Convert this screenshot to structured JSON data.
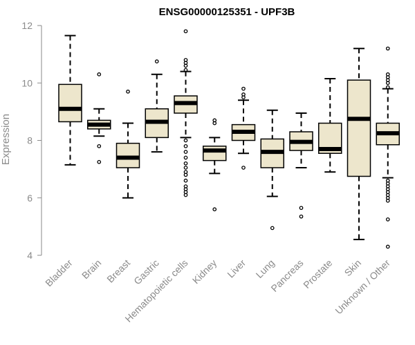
{
  "chart_data": {
    "type": "boxplot",
    "title": "ENSG00000125351 - UPF3B",
    "xlabel": "",
    "ylabel": "Expression",
    "ylim": [
      4,
      12
    ],
    "yticks": [
      "4",
      "6",
      "8",
      "10",
      "12"
    ],
    "grid": false,
    "box_color": "#ede6cc",
    "categories": [
      "Bladder",
      "Brain",
      "Breast",
      "Gastric",
      "Hematopoietic cells",
      "Kidney",
      "Liver",
      "Lung",
      "Pancreas",
      "Prostate",
      "Skin",
      "Unknown / Other"
    ],
    "boxes": [
      {
        "name": "Bladder",
        "whisker_low": 7.15,
        "q1": 8.65,
        "median": 9.1,
        "q3": 9.95,
        "whisker_high": 11.65,
        "outliers": []
      },
      {
        "name": "Brain",
        "whisker_low": 8.15,
        "q1": 8.4,
        "median": 8.55,
        "q3": 8.7,
        "whisker_high": 9.1,
        "outliers": [
          7.8,
          7.25,
          10.3
        ]
      },
      {
        "name": "Breast",
        "whisker_low": 6.0,
        "q1": 7.05,
        "median": 7.4,
        "q3": 7.9,
        "whisker_high": 8.6,
        "outliers": [
          9.7
        ]
      },
      {
        "name": "Gastric",
        "whisker_low": 7.6,
        "q1": 8.1,
        "median": 8.65,
        "q3": 9.1,
        "whisker_high": 10.3,
        "outliers": [
          10.75
        ]
      },
      {
        "name": "Hematopoietic cells",
        "whisker_low": 8.1,
        "q1": 8.95,
        "median": 9.3,
        "q3": 9.55,
        "whisker_high": 10.4,
        "outliers": [
          11.8,
          10.8,
          10.7,
          10.6,
          10.45,
          8.0,
          7.8,
          7.6,
          7.4,
          7.2,
          7.05,
          6.9,
          6.8,
          6.6,
          6.4,
          6.3,
          6.2,
          6.1
        ]
      },
      {
        "name": "Kidney",
        "whisker_low": 6.85,
        "q1": 7.3,
        "median": 7.65,
        "q3": 7.8,
        "whisker_high": 8.1,
        "outliers": [
          8.7,
          8.6,
          5.6
        ]
      },
      {
        "name": "Liver",
        "whisker_low": 7.55,
        "q1": 8.0,
        "median": 8.3,
        "q3": 8.55,
        "whisker_high": 9.4,
        "outliers": [
          9.8,
          9.6,
          9.5,
          7.05
        ]
      },
      {
        "name": "Lung",
        "whisker_low": 6.05,
        "q1": 7.05,
        "median": 7.6,
        "q3": 8.05,
        "whisker_high": 9.05,
        "outliers": [
          4.95
        ]
      },
      {
        "name": "Pancreas",
        "whisker_low": 7.05,
        "q1": 7.65,
        "median": 7.95,
        "q3": 8.3,
        "whisker_high": 8.95,
        "outliers": [
          5.65,
          5.35
        ]
      },
      {
        "name": "Prostate",
        "whisker_low": 6.9,
        "q1": 7.55,
        "median": 7.7,
        "q3": 8.6,
        "whisker_high": 10.15,
        "outliers": []
      },
      {
        "name": "Skin",
        "whisker_low": 4.55,
        "q1": 6.75,
        "median": 8.75,
        "q3": 10.1,
        "whisker_high": 11.2,
        "outliers": []
      },
      {
        "name": "Unknown / Other",
        "whisker_low": 6.7,
        "q1": 7.85,
        "median": 8.25,
        "q3": 8.6,
        "whisker_high": 9.8,
        "outliers": [
          11.2,
          10.3,
          10.2,
          10.1,
          10.0,
          9.85,
          6.6,
          6.5,
          6.4,
          6.3,
          6.2,
          6.1,
          6.0,
          5.9,
          5.25,
          4.3
        ]
      }
    ]
  }
}
